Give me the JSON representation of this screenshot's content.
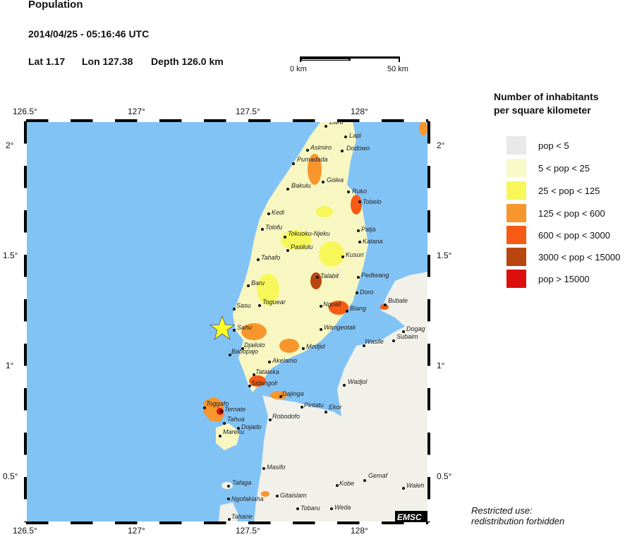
{
  "header": {
    "title": "Population",
    "datetime": "2014/04/25 - 05:16:46 UTC",
    "lat": "Lat  1.17",
    "lon": "Lon 127.38",
    "depth": "Depth 126.0 km"
  },
  "scale": {
    "start": "0 km",
    "end": "50 km"
  },
  "axes": {
    "lon_labels": [
      "126.5°",
      "127°",
      "127.5°",
      "128°"
    ],
    "lat_labels": [
      "2°",
      "1.5°",
      "1°",
      "0.5°"
    ]
  },
  "legend": {
    "title_line1": "Number of inhabitants",
    "title_line2": "per square kilometer",
    "items": [
      {
        "label": "pop < 5",
        "color": "#e8e8e8"
      },
      {
        "label": "5 < pop < 25",
        "color": "#fafac8"
      },
      {
        "label": "25 < pop < 125",
        "color": "#f7f75a"
      },
      {
        "label": "125 < pop < 600",
        "color": "#f7962d"
      },
      {
        "label": "600 < pop < 3000",
        "color": "#f75a14"
      },
      {
        "label": "3000 < pop < 15000",
        "color": "#b9460f"
      },
      {
        "label": "pop > 15000",
        "color": "#dc0f0f"
      }
    ]
  },
  "map": {
    "sea_color": "#82c3f5",
    "epicenter_color": "#ffff28",
    "watermark": "EMSC",
    "places": [
      "Daru",
      "Lapi",
      "Asimiro",
      "Dodowo",
      "Pumadada",
      "Golea",
      "Bakulu",
      "Ruko",
      "Tobelo",
      "Kedi",
      "Tolofu",
      "Patja",
      "Tokuoku-Njeku",
      "Katana",
      "Pasilulu",
      "Tahafo",
      "Kusuri",
      "Talabit",
      "Pediwang",
      "Baru",
      "Doro",
      "Sasu",
      "Toguear",
      "Ngoali",
      "Biang",
      "Bubale",
      "Sahu",
      "Wangeotak",
      "Dogag",
      "Subaim",
      "Wasile",
      "Djailolo",
      "Babopajo",
      "Modjid",
      "Akelamo",
      "Tataleka",
      "Sidangoli",
      "Dajinga",
      "Wadjol",
      "Toggafo",
      "Ternate",
      "Pintatu",
      "Ekor",
      "Robodofo",
      "Tahua",
      "Dojado",
      "Mareku",
      "Masifo",
      "Gemaf",
      "Waleh",
      "Kobe",
      "Tafaga",
      "Ngofakiaha",
      "Gitaislam",
      "Tobaru",
      "Weda",
      "Tahane"
    ]
  },
  "footer": {
    "line1": "Restricted use:",
    "line2": "redistribution forbidden"
  }
}
